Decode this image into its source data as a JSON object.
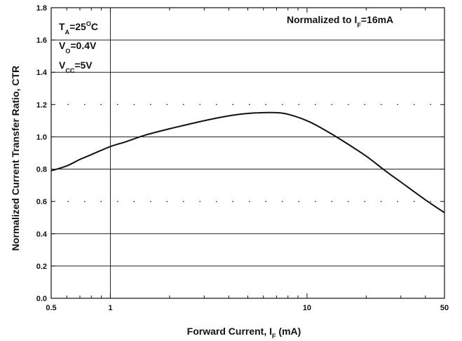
{
  "chart_data": {
    "type": "line",
    "x_scale": "log",
    "xlabel_main": "Forward Current, I",
    "xlabel_sub": "F",
    "xlabel_unit": " (mA)",
    "ylabel": "Normalized Current Transfer Ratio, CTR",
    "xlim": [
      0.5,
      50
    ],
    "ylim": [
      0.0,
      1.8
    ],
    "x_ticks": [
      {
        "value": 0.5,
        "label": "0.5"
      },
      {
        "value": 1,
        "label": "1"
      },
      {
        "value": 10,
        "label": "10"
      },
      {
        "value": 50,
        "label": "50"
      }
    ],
    "y_ticks": [
      {
        "value": 0.0,
        "label": "0.0"
      },
      {
        "value": 0.2,
        "label": "0.2"
      },
      {
        "value": 0.4,
        "label": "0.4"
      },
      {
        "value": 0.6,
        "label": "0.6"
      },
      {
        "value": 0.8,
        "label": "0.8"
      },
      {
        "value": 1.0,
        "label": "1.0"
      },
      {
        "value": 1.2,
        "label": "1.2"
      },
      {
        "value": 1.4,
        "label": "1.4"
      },
      {
        "value": 1.6,
        "label": "1.6"
      },
      {
        "value": 1.8,
        "label": "1.8"
      }
    ],
    "grid": "horizontal solid at 0.2/0.4/0.8/1.0/1.4/1.6, dotted at 0.6/1.2, vertical at x=1",
    "series": [
      {
        "x": [
          0.5,
          0.6,
          0.7,
          0.8,
          1.0,
          1.2,
          1.5,
          2.0,
          3.0,
          4.0,
          5.0,
          6.0,
          7.0,
          8.0,
          10.0,
          12.0,
          15.0,
          20.0,
          25.0,
          30.0,
          40.0,
          50.0
        ],
        "y": [
          0.79,
          0.82,
          0.86,
          0.89,
          0.94,
          0.97,
          1.01,
          1.05,
          1.1,
          1.13,
          1.145,
          1.15,
          1.15,
          1.14,
          1.1,
          1.05,
          0.98,
          0.88,
          0.79,
          0.72,
          0.61,
          0.53
        ]
      }
    ],
    "annotations": {
      "ta_main": "T",
      "ta_sub": "A",
      "ta_value": "=25",
      "ta_deg": "O",
      "ta_unit": "C",
      "vo_main": "V",
      "vo_sub": "O",
      "vo_value": "=0.4V",
      "vcc_main": "V",
      "vcc_sub": "CC",
      "vcc_value": "=5V",
      "norm_prefix": "Normalized to I",
      "norm_sub": "F",
      "norm_value": "=16mA"
    }
  }
}
